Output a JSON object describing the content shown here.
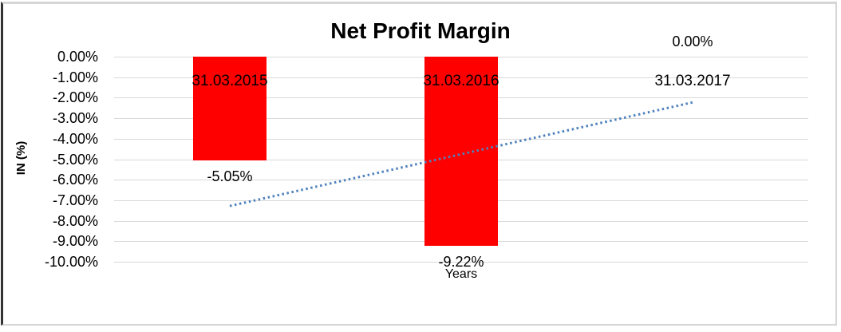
{
  "chart_data": {
    "type": "bar",
    "title": "Net Profit Margin",
    "xlabel": "Years",
    "ylabel": "IN (%)",
    "categories": [
      "31.03.2015",
      "31.03.2016",
      "31.03.2017"
    ],
    "values": [
      -5.05,
      -9.22,
      0.0
    ],
    "value_labels": [
      "-5.05%",
      "-9.22%",
      "0.00%"
    ],
    "ylim": [
      -10,
      0
    ],
    "ytick_step": 1,
    "ytick_labels": [
      "0.00%",
      "-1.00%",
      "-2.00%",
      "-3.00%",
      "-4.00%",
      "-5.00%",
      "-6.00%",
      "-7.00%",
      "-8.00%",
      "-9.00%",
      "-10.00%"
    ],
    "grid": true,
    "legend": "none",
    "bar_color": "#FF0000",
    "gridline_color": "#d9d9d9",
    "text_color": "#000000",
    "trendline": {
      "style": "dotted",
      "color": "#4F81BD",
      "start_value": -7.28,
      "end_value": -2.23
    }
  }
}
